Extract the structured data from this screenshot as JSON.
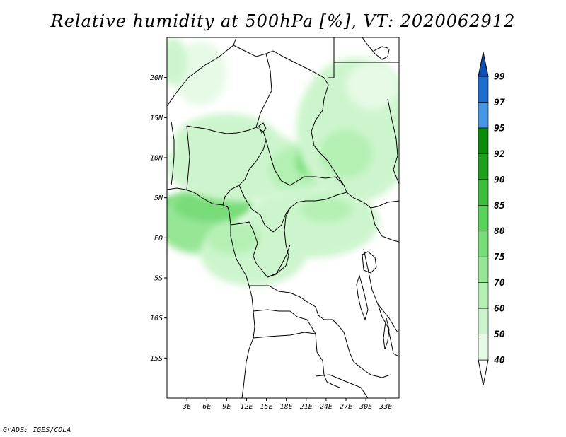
{
  "title": "Relative humidity at 500hPa [%], VT: 2020062912",
  "credit": "GrADS: IGES/COLA",
  "map": {
    "lon_range": [
      0,
      35
    ],
    "lat_range": [
      -20,
      25
    ],
    "lat_ticks": [
      {
        "lat": 20,
        "label": "20N"
      },
      {
        "lat": 15,
        "label": "15N"
      },
      {
        "lat": 10,
        "label": "10N"
      },
      {
        "lat": 5,
        "label": "5N"
      },
      {
        "lat": 0,
        "label": "EQ"
      },
      {
        "lat": -5,
        "label": "5S"
      },
      {
        "lat": -10,
        "label": "10S"
      },
      {
        "lat": -15,
        "label": "15S"
      }
    ],
    "lon_ticks": [
      {
        "lon": 3,
        "label": "3E"
      },
      {
        "lon": 6,
        "label": "6E"
      },
      {
        "lon": 9,
        "label": "9E"
      },
      {
        "lon": 12,
        "label": "12E"
      },
      {
        "lon": 15,
        "label": "15E"
      },
      {
        "lon": 18,
        "label": "18E"
      },
      {
        "lon": 21,
        "label": "21E"
      },
      {
        "lon": 24,
        "label": "24E"
      },
      {
        "lon": 27,
        "label": "27E"
      },
      {
        "lon": 30,
        "label": "30E"
      },
      {
        "lon": 33,
        "label": "33E"
      }
    ]
  },
  "colorbar": {
    "levels": [
      "40",
      "50",
      "60",
      "70",
      "75",
      "80",
      "85",
      "90",
      "92",
      "95",
      "97",
      "99"
    ],
    "colors": [
      "#ffffff",
      "#e6fae6",
      "#cdf5cd",
      "#b4f0b4",
      "#96e696",
      "#78dc78",
      "#5ad25a",
      "#3cbe3c",
      "#1ea01e",
      "#0a8c0a",
      "#4696e6",
      "#1e6ed2",
      "#0a50b4"
    ]
  },
  "humidity_blobs": [
    {
      "lon": 1.5,
      "lat": 2.5,
      "rx": 4.5,
      "ry": 2.5,
      "level": 7
    },
    {
      "lon": 2.8,
      "lat": 3.6,
      "rx": 1.6,
      "ry": 0.9,
      "level": 8
    },
    {
      "lon": 2.9,
      "lat": 3.5,
      "rx": 0.7,
      "ry": 0.4,
      "level": 10
    },
    {
      "lon": 4.5,
      "lat": 2.0,
      "rx": 6.0,
      "ry": 4.0,
      "level": 4
    },
    {
      "lon": 7.0,
      "lat": 4.0,
      "rx": 6.0,
      "ry": 2.0,
      "level": 5
    },
    {
      "lon": 11.0,
      "lat": 9.0,
      "rx": 11.0,
      "ry": 4.5,
      "level": 2
    },
    {
      "lon": 9.0,
      "lat": 12.0,
      "rx": 8.0,
      "ry": 3.5,
      "level": 2
    },
    {
      "lon": 20.0,
      "lat": 8.5,
      "rx": 4.5,
      "ry": 3.0,
      "level": 3
    },
    {
      "lon": 21.5,
      "lat": 9.5,
      "rx": 2.0,
      "ry": 1.8,
      "level": 5
    },
    {
      "lon": 28.5,
      "lat": 13.5,
      "rx": 9.0,
      "ry": 9.0,
      "level": 2
    },
    {
      "lon": 27.0,
      "lat": 10.5,
      "rx": 4.0,
      "ry": 3.0,
      "level": 3
    },
    {
      "lon": 22.0,
      "lat": 2.0,
      "rx": 10.0,
      "ry": 4.5,
      "level": 2
    },
    {
      "lon": 24.0,
      "lat": 3.5,
      "rx": 4.0,
      "ry": 1.5,
      "level": 3
    },
    {
      "lon": 13.0,
      "lat": -2.0,
      "rx": 8.0,
      "ry": 4.0,
      "level": 2
    },
    {
      "lon": 10.0,
      "lat": 0.0,
      "rx": 4.0,
      "ry": 2.0,
      "level": 3
    },
    {
      "lon": 5.0,
      "lat": 20.5,
      "rx": 4.0,
      "ry": 4.0,
      "level": 1
    },
    {
      "lon": 1.0,
      "lat": 22.0,
      "rx": 2.0,
      "ry": 3.0,
      "level": 2
    },
    {
      "lon": 31.0,
      "lat": 19.0,
      "rx": 4.0,
      "ry": 3.0,
      "level": 1
    }
  ]
}
